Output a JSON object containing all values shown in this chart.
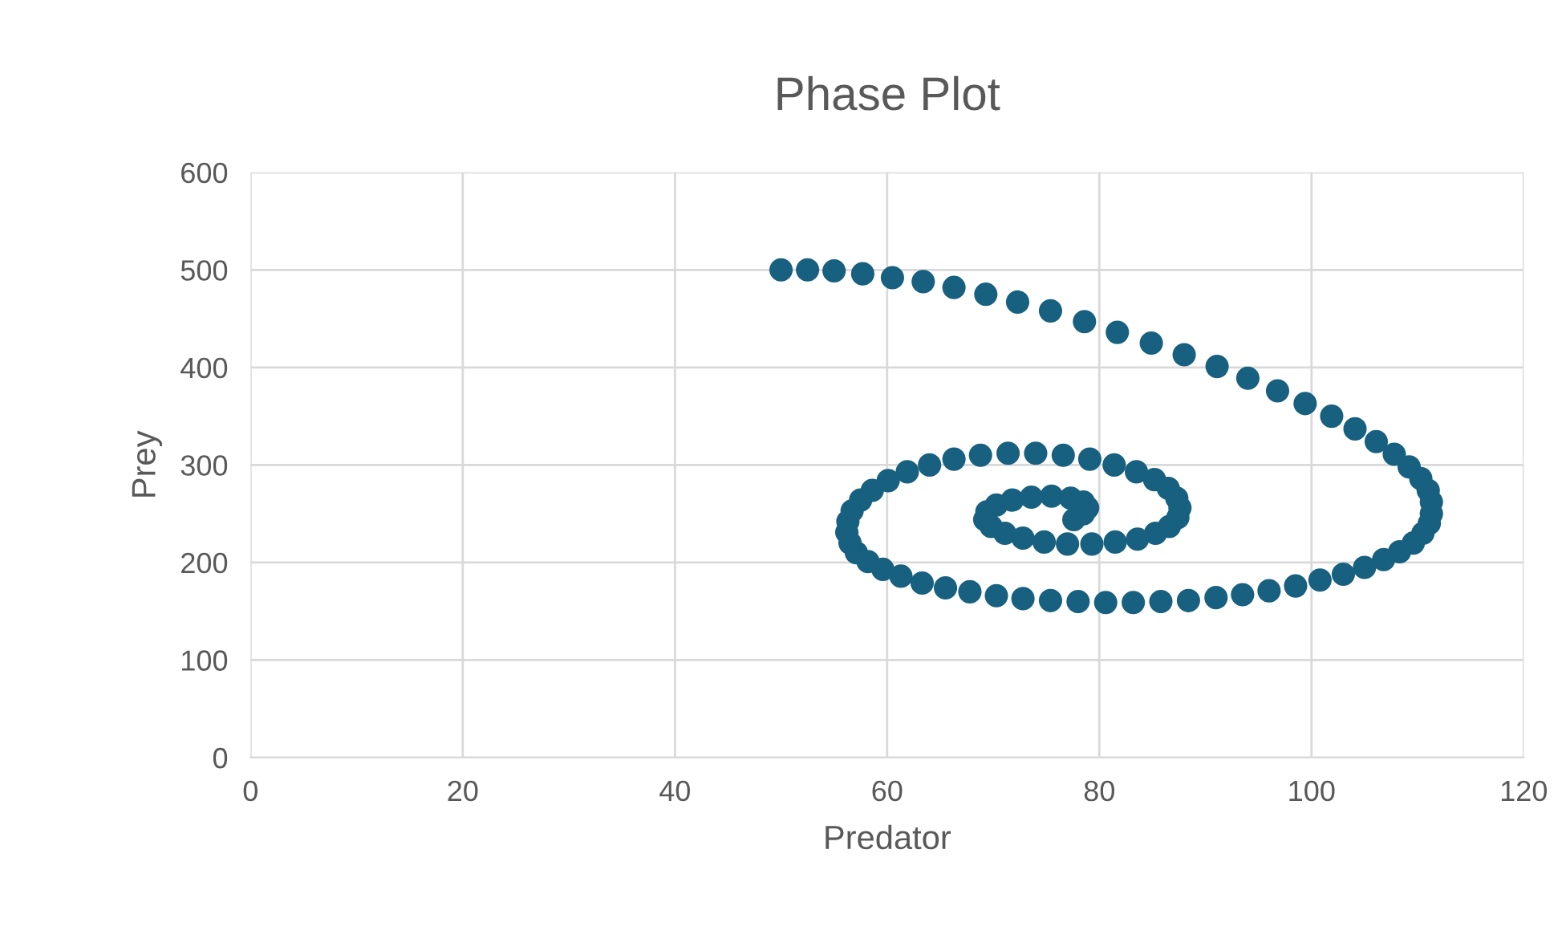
{
  "chart_data": {
    "type": "scatter",
    "title": "Phase Plot",
    "xlabel": "Predator",
    "ylabel": "Prey",
    "xlim": [
      0,
      120
    ],
    "xticks": [
      0,
      20,
      40,
      60,
      80,
      100,
      120
    ],
    "ylim": [
      0,
      600
    ],
    "yticks": [
      0,
      100,
      200,
      300,
      400,
      500,
      600
    ],
    "grid": true,
    "marker": "circle",
    "series": [
      {
        "color": "#17607f",
        "x": [
          50,
          52.5,
          55,
          57.7,
          60.5,
          63.4,
          66.3,
          69.3,
          72.3,
          75.4,
          78.6,
          81.7,
          84.9,
          88,
          91.1,
          94,
          96.8,
          99.4,
          101.9,
          104.1,
          106.1,
          107.8,
          109.2,
          110.3,
          111,
          111.3,
          111.3,
          111.1,
          110.5,
          109.6,
          108.3,
          106.8,
          105,
          103,
          100.8,
          98.5,
          96,
          93.5,
          91,
          88.4,
          85.8,
          83.2,
          80.6,
          78,
          75.4,
          72.8,
          70.3,
          67.8,
          65.5,
          63.3,
          61.3,
          59.6,
          58.2,
          57.1,
          56.5,
          56.2,
          56.3,
          56.7,
          57.5,
          58.6,
          60.1,
          61.9,
          64,
          66.3,
          68.8,
          71.4,
          74,
          76.6,
          79.1,
          81.4,
          83.5,
          85.2,
          86.5,
          87.3,
          87.6,
          87.4,
          86.6,
          85.3,
          83.6,
          81.5,
          79.3,
          77,
          74.8,
          72.8,
          71.1,
          69.8,
          69.2,
          69.4,
          70.3,
          71.8,
          73.6,
          75.5,
          77.3,
          78.5,
          78.9,
          78.5,
          77.6
        ],
        "values": [
          500,
          500,
          499,
          496,
          492,
          488,
          482,
          475,
          467,
          458,
          447,
          436,
          425,
          413,
          401,
          389,
          376,
          363,
          350,
          337,
          324,
          311,
          298,
          286,
          274,
          262,
          250,
          240,
          230,
          220,
          211,
          203,
          195,
          188,
          182,
          176,
          171,
          167,
          164,
          161,
          160,
          159,
          159,
          160,
          161,
          163,
          166,
          170,
          174,
          179,
          186,
          193,
          201,
          210,
          220,
          231,
          242,
          253,
          264,
          274,
          284,
          293,
          300,
          306,
          310,
          312,
          312,
          310,
          306,
          300,
          293,
          285,
          276,
          266,
          256,
          246,
          237,
          230,
          224,
          221,
          219,
          219,
          221,
          225,
          230,
          237,
          244,
          252,
          259,
          264,
          267,
          268,
          266,
          262,
          256,
          250,
          244
        ]
      }
    ]
  }
}
